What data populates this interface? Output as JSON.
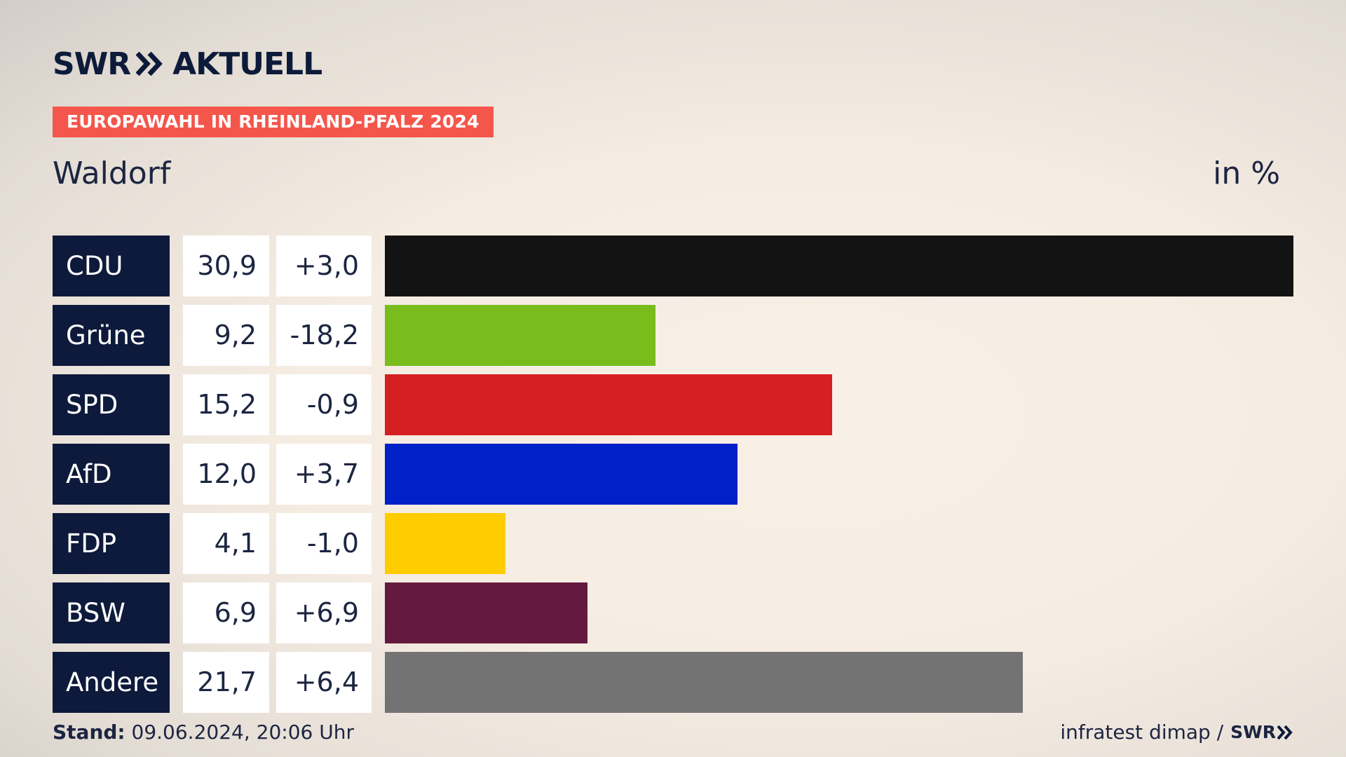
{
  "brand": {
    "logo_left": "SWR",
    "logo_right": "AKTUELL"
  },
  "tag": "EUROPAWAHL IN RHEINLAND-PFALZ 2024",
  "place": "Waldorf",
  "unit": "in %",
  "footer": {
    "stand_label": "Stand:",
    "stand_value": " 09.06.2024, 20:06 Uhr",
    "source": "infratest dimap /",
    "source_logo": "SWR"
  },
  "chart_data": {
    "type": "bar",
    "title": "Waldorf",
    "ylabel": "in %",
    "categories": [
      "CDU",
      "Grüne",
      "SPD",
      "AfD",
      "FDP",
      "BSW",
      "Andere"
    ],
    "values": [
      30.9,
      9.2,
      15.2,
      12.0,
      4.1,
      6.9,
      21.7
    ],
    "value_labels": [
      "30,9",
      "9,2",
      "15,2",
      "12,0",
      "4,1",
      "6,9",
      "21,7"
    ],
    "diff_labels": [
      "+3,0",
      "-18,2",
      "-0,9",
      "+3,7",
      "-1,0",
      "+6,9",
      "+6,4"
    ],
    "colors": [
      "#131313",
      "#78bd1c",
      "#d61f20",
      "#0020c8",
      "#ffcc00",
      "#641a3e",
      "#737373"
    ],
    "xlim": [
      0,
      30.9
    ]
  }
}
